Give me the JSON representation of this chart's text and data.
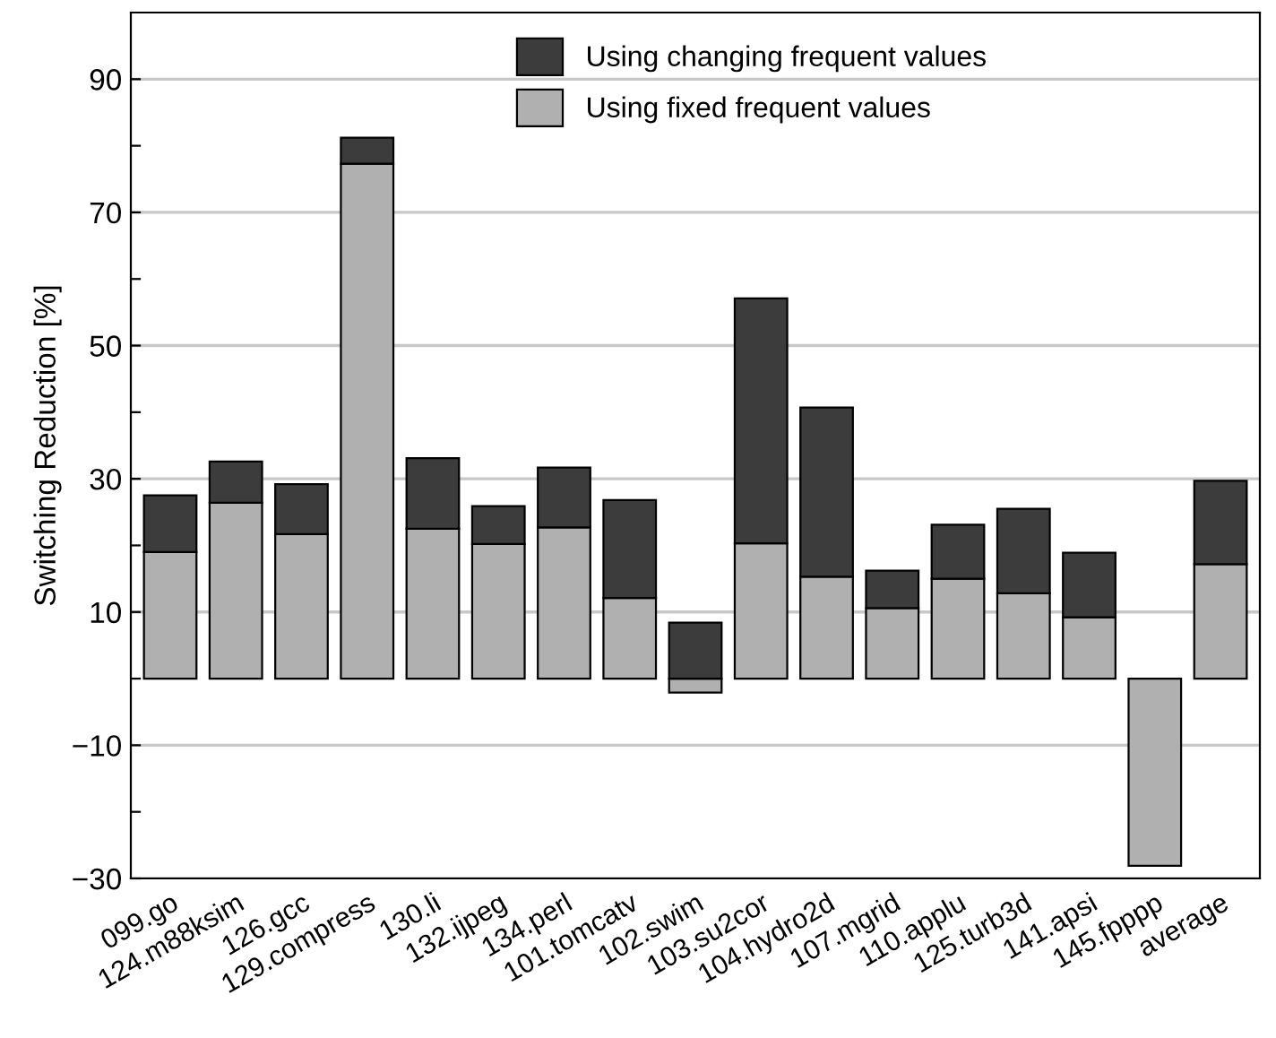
{
  "chart_data": {
    "type": "bar",
    "stacked": true,
    "ylabel": "Switching Reduction [%]",
    "categories": [
      "099.go",
      "124.m88ksim",
      "126.gcc",
      "129.compress",
      "130.li",
      "132.ijpeg",
      "134.perl",
      "101.tomcatv",
      "102.swim",
      "103.su2cor",
      "104.hydro2d",
      "107.mgrid",
      "110.applu",
      "125.turb3d",
      "141.apsi",
      "145.fpppp",
      "average"
    ],
    "series": [
      {
        "name": "Using fixed frequent values",
        "color": "#b0b0b0",
        "values": [
          19.0,
          26.4,
          21.7,
          77.3,
          22.5,
          20.2,
          22.7,
          12.1,
          -2.1,
          20.3,
          15.3,
          10.6,
          15.0,
          12.8,
          9.2,
          -28.1,
          17.2
        ]
      },
      {
        "name": "Using changing frequent values",
        "color": "#3c3c3c",
        "values": [
          8.5,
          6.2,
          7.5,
          3.9,
          10.6,
          5.7,
          9.0,
          14.7,
          8.4,
          36.8,
          25.4,
          5.6,
          8.1,
          12.7,
          9.7,
          null,
          12.5
        ]
      }
    ],
    "ylim": [
      -30,
      100
    ],
    "yticks": [
      {
        "value": -30,
        "label": "−30"
      },
      {
        "value": -20,
        "label": null
      },
      {
        "value": -10,
        "label": "−10"
      },
      {
        "value": 0,
        "label": null
      },
      10,
      {
        "value": 20,
        "label": null
      },
      30,
      {
        "value": 40,
        "label": null
      },
      50,
      {
        "value": 60,
        "label": null
      },
      70,
      {
        "value": 80,
        "label": null
      },
      90
    ],
    "grid": "y",
    "legend": "top"
  }
}
